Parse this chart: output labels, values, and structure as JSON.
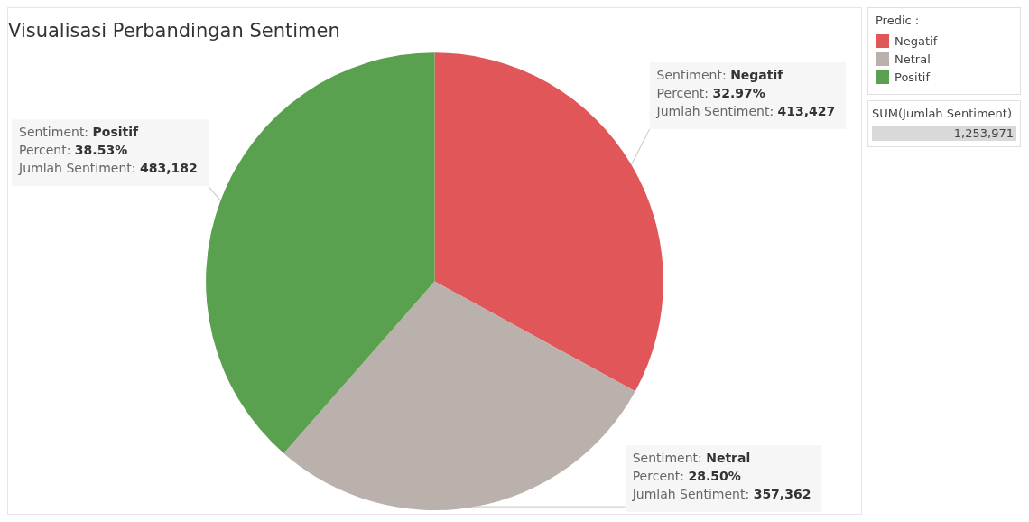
{
  "chart_data": {
    "type": "pie",
    "title": "Visualisasi Perbandingan Sentimen",
    "categories": [
      "Negatif",
      "Netral",
      "Positif"
    ],
    "values": [
      32.97,
      28.5,
      38.53
    ],
    "colors": [
      "#e15759",
      "#bab0ac",
      "#59a14f"
    ],
    "value_labels": [
      "Sentiment: Negatif\nPercent: 32.97%\nJumlah Sentiment: 413,427",
      "Sentiment: Netral\nPercent: 28.50%\nJumlah Sentiment: 357,362",
      "Sentiment: Positif\nPercent: 38.53%\nJumlah Sentiment: 483,182"
    ],
    "legend": "right",
    "legend_title": "Predic :",
    "annotations": [
      "SUM(Jumlah Sentiment)",
      "1,253,971"
    ]
  }
}
